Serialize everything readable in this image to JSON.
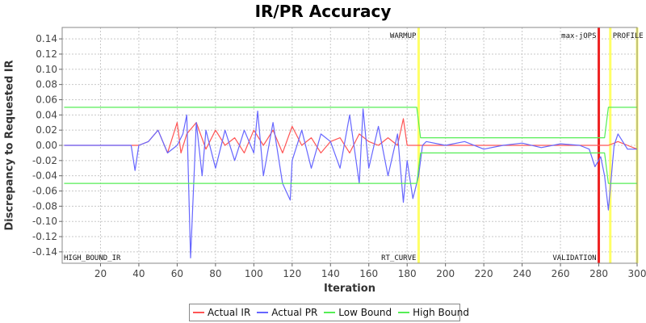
{
  "chart_data": {
    "type": "line",
    "title": "IR/PR Accuracy",
    "xlabel": "Iteration",
    "ylabel": "Discrepancy to Requested IR",
    "xlim": [
      0,
      300
    ],
    "ylim": [
      -0.155,
      0.155
    ],
    "grid": true,
    "x_ticks": [
      20,
      40,
      60,
      80,
      100,
      120,
      140,
      160,
      180,
      200,
      220,
      240,
      260,
      280,
      300
    ],
    "y_ticks": [
      0.14,
      0.12,
      0.1,
      0.08,
      0.06,
      0.04,
      0.02,
      0.0,
      -0.02,
      -0.04,
      -0.06,
      -0.08,
      -0.1,
      -0.12,
      -0.14
    ],
    "y_tick_labels": [
      "0.14",
      "0.12",
      "0.10",
      "0.08",
      "0.06",
      "0.04",
      "0.02",
      "0.00",
      "-0.02",
      "-0.04",
      "-0.06",
      "-0.08",
      "-0.10",
      "-0.12",
      "-0.14"
    ],
    "legend_position": "bottom",
    "series": [
      {
        "name": "Actual IR",
        "color": "#ff5555",
        "x": [
          1,
          40,
          45,
          50,
          55,
          60,
          62,
          65,
          70,
          75,
          80,
          85,
          90,
          95,
          100,
          105,
          110,
          115,
          120,
          125,
          130,
          135,
          140,
          145,
          150,
          155,
          160,
          165,
          170,
          175,
          178,
          180,
          185,
          190,
          200,
          210,
          220,
          230,
          240,
          250,
          260,
          270,
          280,
          285,
          290,
          295,
          300
        ],
        "y": [
          0.0,
          0.0,
          0.005,
          0.02,
          -0.01,
          0.03,
          -0.01,
          0.015,
          0.03,
          -0.005,
          0.02,
          0.0,
          0.01,
          -0.01,
          0.02,
          0.0,
          0.02,
          -0.01,
          0.025,
          0.0,
          0.01,
          -0.01,
          0.005,
          0.01,
          -0.01,
          0.015,
          0.005,
          0.0,
          0.01,
          0.0,
          0.035,
          0.0,
          0.0,
          0.0,
          0.0,
          0.0,
          0.0,
          0.0,
          0.0,
          0.0,
          0.0,
          0.0,
          0.0,
          0.0,
          0.005,
          0.0,
          -0.005
        ]
      },
      {
        "name": "Actual PR",
        "color": "#6666ff",
        "x": [
          1,
          36,
          38,
          40,
          45,
          50,
          55,
          60,
          63,
          65,
          67,
          70,
          73,
          75,
          80,
          85,
          90,
          95,
          100,
          102,
          105,
          110,
          115,
          119,
          120,
          125,
          130,
          135,
          140,
          145,
          150,
          155,
          157,
          160,
          165,
          170,
          175,
          178,
          180,
          183,
          186,
          188,
          190,
          200,
          210,
          220,
          230,
          240,
          250,
          260,
          270,
          275,
          278,
          281,
          283,
          285,
          288,
          290,
          295,
          300
        ],
        "y": [
          0.0,
          0.0,
          -0.033,
          0.0,
          0.005,
          0.02,
          -0.01,
          0.0,
          0.015,
          0.04,
          -0.148,
          0.03,
          -0.04,
          0.02,
          -0.03,
          0.02,
          -0.02,
          0.02,
          -0.01,
          0.045,
          -0.04,
          0.03,
          -0.05,
          -0.072,
          -0.02,
          0.02,
          -0.03,
          0.015,
          0.005,
          -0.03,
          0.04,
          -0.05,
          0.048,
          -0.03,
          0.025,
          -0.04,
          0.015,
          -0.075,
          -0.02,
          -0.07,
          -0.04,
          0.0,
          0.005,
          0.0,
          0.005,
          -0.005,
          0.0,
          0.003,
          -0.003,
          0.002,
          0.0,
          -0.005,
          -0.028,
          -0.015,
          -0.04,
          -0.085,
          0.0,
          0.015,
          -0.005,
          -0.005
        ]
      },
      {
        "name": "Low Bound",
        "color": "#55ee55",
        "x": [
          1,
          185,
          187,
          283,
          285,
          300
        ],
        "y": [
          -0.05,
          -0.05,
          -0.01,
          -0.01,
          -0.05,
          -0.05
        ]
      },
      {
        "name": "High Bound",
        "color": "#55ee55",
        "x": [
          1,
          185,
          187,
          283,
          285,
          300
        ],
        "y": [
          0.05,
          0.05,
          0.01,
          0.01,
          0.05,
          0.05
        ]
      }
    ],
    "markers": [
      {
        "x": 186,
        "color": "#ffff66",
        "top_label": "WARMUP",
        "bottom_label": "RT_CURVE"
      },
      {
        "x": 280,
        "color": "#ee2222",
        "top_label": "max-jOPS",
        "bottom_label": "VALIDATION"
      },
      {
        "x": 286,
        "color": "#ffff66",
        "top_label": "PROFILE",
        "bottom_label": ""
      },
      {
        "x": 300,
        "color": "#ffff66",
        "top_label": "",
        "bottom_label": ""
      }
    ],
    "corner_labels": {
      "bottom_left": "HIGH_BOUND_IR"
    }
  }
}
